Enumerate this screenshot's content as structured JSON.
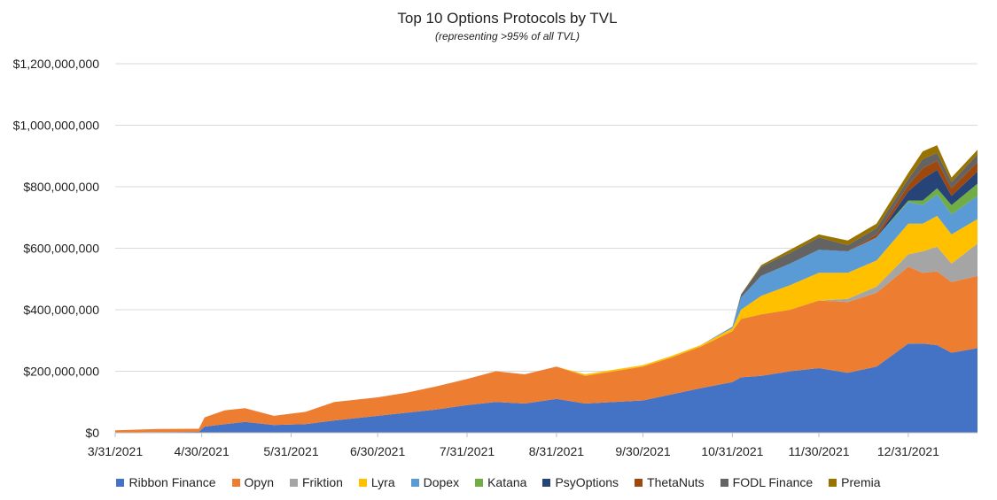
{
  "chart_data": {
    "type": "area",
    "stacked": true,
    "title": "Top 10 Options Protocols by TVL",
    "subtitle": "(representing >95% of all TVL)",
    "ylim": [
      0,
      1200000000
    ],
    "y_ticks": [
      0,
      200000000,
      400000000,
      600000000,
      800000000,
      1000000000,
      1200000000
    ],
    "y_tick_labels": [
      "$0",
      "$200,000,000",
      "$400,000,000",
      "$600,000,000",
      "$800,000,000",
      "$1,000,000,000",
      "$1,200,000,000"
    ],
    "x_range": [
      "2021-03-31",
      "2022-01-24"
    ],
    "x_tick_labels": [
      "3/31/2021",
      "4/30/2021",
      "5/31/2021",
      "6/30/2021",
      "7/31/2021",
      "8/31/2021",
      "9/30/2021",
      "10/31/2021",
      "11/30/2021",
      "12/31/2021"
    ],
    "x_tick_dates": [
      "2021-03-31",
      "2021-04-30",
      "2021-05-31",
      "2021-06-30",
      "2021-07-31",
      "2021-08-31",
      "2021-09-30",
      "2021-10-31",
      "2021-11-30",
      "2021-12-31"
    ],
    "grid": "horizontal",
    "legend_position": "bottom",
    "x": [
      "2021-03-31",
      "2021-04-15",
      "2021-04-29",
      "2021-05-01",
      "2021-05-08",
      "2021-05-15",
      "2021-05-25",
      "2021-06-05",
      "2021-06-15",
      "2021-06-30",
      "2021-07-10",
      "2021-07-20",
      "2021-07-31",
      "2021-08-10",
      "2021-08-20",
      "2021-08-31",
      "2021-09-10",
      "2021-09-20",
      "2021-09-30",
      "2021-10-10",
      "2021-10-20",
      "2021-10-31",
      "2021-11-03",
      "2021-11-10",
      "2021-11-20",
      "2021-11-30",
      "2021-12-10",
      "2021-12-20",
      "2021-12-31",
      "2022-01-05",
      "2022-01-10",
      "2022-01-15",
      "2022-01-24"
    ],
    "series": [
      {
        "name": "Ribbon Finance",
        "color": "#4472C4",
        "values": [
          1000000,
          2000000,
          3000000,
          20000000,
          28000000,
          35000000,
          25000000,
          28000000,
          40000000,
          55000000,
          65000000,
          75000000,
          90000000,
          100000000,
          95000000,
          110000000,
          95000000,
          100000000,
          105000000,
          125000000,
          145000000,
          165000000,
          180000000,
          185000000,
          200000000,
          210000000,
          195000000,
          215000000,
          290000000,
          290000000,
          285000000,
          260000000,
          275000000
        ]
      },
      {
        "name": "Opyn",
        "color": "#ED7D31",
        "values": [
          7000000,
          10000000,
          10000000,
          30000000,
          45000000,
          45000000,
          30000000,
          40000000,
          60000000,
          60000000,
          65000000,
          75000000,
          85000000,
          100000000,
          95000000,
          105000000,
          90000000,
          100000000,
          110000000,
          120000000,
          135000000,
          165000000,
          190000000,
          200000000,
          200000000,
          220000000,
          230000000,
          240000000,
          250000000,
          230000000,
          240000000,
          230000000,
          235000000
        ]
      },
      {
        "name": "Friktion",
        "color": "#A5A5A5",
        "values": [
          0,
          0,
          0,
          0,
          0,
          0,
          0,
          0,
          0,
          0,
          0,
          0,
          0,
          0,
          0,
          0,
          0,
          0,
          0,
          0,
          0,
          0,
          0,
          0,
          0,
          0,
          10000000,
          20000000,
          40000000,
          70000000,
          80000000,
          60000000,
          105000000
        ]
      },
      {
        "name": "Lyra",
        "color": "#FFC000",
        "values": [
          0,
          0,
          0,
          0,
          0,
          0,
          0,
          0,
          0,
          0,
          0,
          0,
          0,
          0,
          0,
          0,
          5000000,
          5000000,
          5000000,
          5000000,
          5000000,
          10000000,
          30000000,
          60000000,
          80000000,
          90000000,
          85000000,
          85000000,
          100000000,
          90000000,
          100000000,
          95000000,
          80000000
        ]
      },
      {
        "name": "Dopex",
        "color": "#5B9BD5",
        "values": [
          0,
          0,
          0,
          0,
          0,
          0,
          0,
          0,
          0,
          0,
          0,
          0,
          0,
          0,
          0,
          0,
          0,
          0,
          0,
          0,
          0,
          5000000,
          40000000,
          65000000,
          70000000,
          75000000,
          70000000,
          75000000,
          70000000,
          60000000,
          70000000,
          65000000,
          75000000
        ]
      },
      {
        "name": "Katana",
        "color": "#70AD47",
        "values": [
          0,
          0,
          0,
          0,
          0,
          0,
          0,
          0,
          0,
          0,
          0,
          0,
          0,
          0,
          0,
          0,
          0,
          0,
          0,
          0,
          0,
          0,
          0,
          0,
          0,
          0,
          0,
          0,
          5000000,
          15000000,
          20000000,
          30000000,
          40000000
        ]
      },
      {
        "name": "PsyOptions",
        "color": "#264478",
        "values": [
          0,
          0,
          0,
          0,
          0,
          0,
          0,
          0,
          0,
          0,
          0,
          0,
          0,
          0,
          0,
          0,
          0,
          0,
          0,
          0,
          0,
          0,
          0,
          0,
          0,
          0,
          0,
          0,
          30000000,
          70000000,
          60000000,
          30000000,
          40000000
        ]
      },
      {
        "name": "ThetaNuts",
        "color": "#9E480E",
        "values": [
          0,
          0,
          0,
          0,
          0,
          0,
          0,
          0,
          0,
          0,
          0,
          0,
          0,
          0,
          0,
          0,
          0,
          0,
          0,
          0,
          0,
          0,
          0,
          0,
          0,
          0,
          0,
          10000000,
          20000000,
          35000000,
          30000000,
          25000000,
          30000000
        ]
      },
      {
        "name": "FODL Finance",
        "color": "#636363",
        "values": [
          0,
          0,
          0,
          0,
          0,
          0,
          0,
          0,
          0,
          0,
          0,
          0,
          0,
          0,
          0,
          0,
          0,
          0,
          0,
          0,
          0,
          0,
          10000000,
          30000000,
          35000000,
          40000000,
          20000000,
          20000000,
          20000000,
          30000000,
          25000000,
          20000000,
          25000000
        ]
      },
      {
        "name": "Premia",
        "color": "#997300",
        "values": [
          0,
          0,
          0,
          0,
          0,
          0,
          0,
          0,
          0,
          0,
          0,
          0,
          0,
          0,
          0,
          0,
          0,
          0,
          0,
          0,
          0,
          0,
          0,
          5000000,
          10000000,
          10000000,
          15000000,
          15000000,
          20000000,
          25000000,
          25000000,
          15000000,
          15000000
        ]
      }
    ]
  }
}
